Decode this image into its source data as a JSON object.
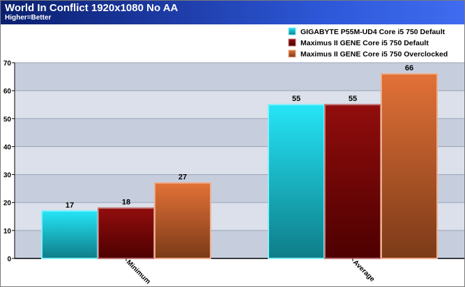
{
  "header": {
    "title": "World In Conflict 1920x1080 No AA",
    "subtitle": "Higher=Better"
  },
  "chart_data": {
    "type": "bar",
    "categories": [
      "Minimum",
      "Average"
    ],
    "series": [
      {
        "name": "GIGABYTE P55M-UD4 Core i5 750 Default",
        "values": [
          17,
          55
        ],
        "color": "#19e4f7"
      },
      {
        "name": "Maximus II GENE Core i5 750 Default",
        "values": [
          18,
          55
        ],
        "color": "#8c0000"
      },
      {
        "name": "Maximus II GENE Core i5 750 Overclocked",
        "values": [
          27,
          66
        ],
        "color": "#e06a2c"
      }
    ],
    "ylim": [
      0,
      70
    ],
    "yticks": [
      0,
      10,
      20,
      30,
      40,
      50,
      60,
      70
    ],
    "grid": true,
    "legend_position": "top-right",
    "data_labels": true
  }
}
